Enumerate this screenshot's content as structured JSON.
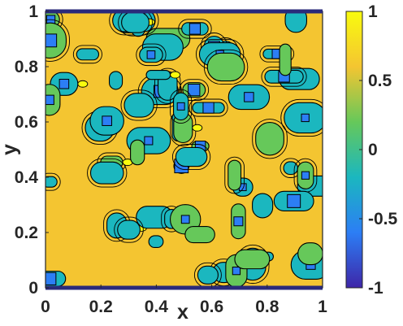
{
  "chart_data": {
    "type": "heatmap",
    "description_kind": "filled contour plot with colorbar",
    "title": "",
    "xlabel": "x",
    "ylabel": "y",
    "xlim": [
      0,
      1
    ],
    "ylim": [
      0,
      1
    ],
    "x_ticks": [
      "0",
      "0.2",
      "0.4",
      "0.6",
      "0.8",
      "1"
    ],
    "y_ticks": [
      "0",
      "0.2",
      "0.4",
      "0.6",
      "0.8",
      "1"
    ],
    "colorbar": {
      "limits": [
        -1,
        1
      ],
      "ticks": [
        "1",
        "0.5",
        "0",
        "-0.5",
        "-1"
      ],
      "colormap": "parula",
      "colors": [
        "#3e26a8",
        "#2c7ef5",
        "#1bb7bf",
        "#66c85a",
        "#f4c531",
        "#f9fb0e"
      ]
    },
    "contour_line_color": "#000000",
    "grid": false
  }
}
